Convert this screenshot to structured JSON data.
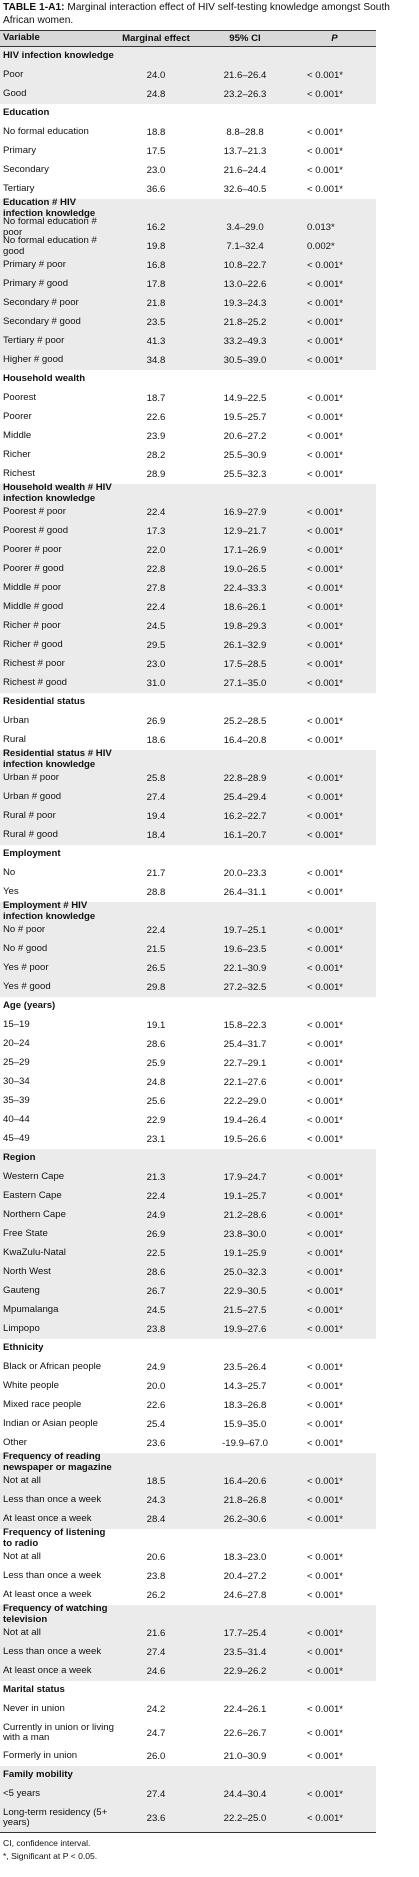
{
  "title": {
    "label": "TABLE 1-A1:",
    "text": "Marginal interaction effect of HIV self-testing knowledge amongst South African women."
  },
  "table": {
    "columns": [
      "Variable",
      "Marginal effect",
      "95% CI",
      "P"
    ],
    "sections": [
      {
        "title": "HIV infection knowledge",
        "rows": [
          [
            "Poor",
            "24.0",
            "21.6–26.4",
            "< 0.001*"
          ],
          [
            "Good",
            "24.8",
            "23.2–26.3",
            "< 0.001*"
          ]
        ]
      },
      {
        "title": "Education",
        "rows": [
          [
            "No formal education",
            "18.8",
            "8.8–28.8",
            "< 0.001*"
          ],
          [
            "Primary",
            "17.5",
            "13.7–21.3",
            "< 0.001*"
          ],
          [
            "Secondary",
            "23.0",
            "21.6–24.4",
            "< 0.001*"
          ],
          [
            "Tertiary",
            "36.6",
            "32.6–40.5",
            "< 0.001*"
          ]
        ]
      },
      {
        "title": "Education # HIV infection knowledge",
        "rows": [
          [
            "No formal education # poor",
            "16.2",
            "3.4–29.0",
            "0.013*"
          ],
          [
            "No formal education # good",
            "19.8",
            "7.1–32.4",
            "0.002*"
          ],
          [
            "Primary # poor",
            "16.8",
            "10.8–22.7",
            "< 0.001*"
          ],
          [
            "Primary # good",
            "17.8",
            "13.0–22.6",
            "< 0.001*"
          ],
          [
            "Secondary # poor",
            "21.8",
            "19.3–24.3",
            "< 0.001*"
          ],
          [
            "Secondary # good",
            "23.5",
            "21.8–25.2",
            "< 0.001*"
          ],
          [
            "Tertiary # poor",
            "41.3",
            "33.2–49.3",
            "< 0.001*"
          ],
          [
            "Higher # good",
            "34.8",
            "30.5–39.0",
            "< 0.001*"
          ]
        ]
      },
      {
        "title": "Household wealth",
        "rows": [
          [
            "Poorest",
            "18.7",
            "14.9–22.5",
            "< 0.001*"
          ],
          [
            "Poorer",
            "22.6",
            "19.5–25.7",
            "< 0.001*"
          ],
          [
            "Middle",
            "23.9",
            "20.6–27.2",
            "< 0.001*"
          ],
          [
            "Richer",
            "28.2",
            "25.5–30.9",
            "< 0.001*"
          ],
          [
            "Richest",
            "28.9",
            "25.5–32.3",
            "< 0.001*"
          ]
        ]
      },
      {
        "title": "Household wealth # HIV infection knowledge",
        "rows": [
          [
            "Poorest # poor",
            "22.4",
            "16.9–27.9",
            "< 0.001*"
          ],
          [
            "Poorest # good",
            "17.3",
            "12.9–21.7",
            "< 0.001*"
          ],
          [
            "Poorer # poor",
            "22.0",
            "17.1–26.9",
            "< 0.001*"
          ],
          [
            "Poorer # good",
            "22.8",
            "19.0–26.5",
            "< 0.001*"
          ],
          [
            "Middle # poor",
            "27.8",
            "22.4–33.3",
            "< 0.001*"
          ],
          [
            "Middle # good",
            "22.4",
            "18.6–26.1",
            "< 0.001*"
          ],
          [
            "Richer # poor",
            "24.5",
            "19.8–29.3",
            "< 0.001*"
          ],
          [
            "Richer # good",
            "29.5",
            "26.1–32.9",
            "< 0.001*"
          ],
          [
            "Richest # poor",
            "23.0",
            "17.5–28.5",
            "< 0.001*"
          ],
          [
            "Richest # good",
            "31.0",
            "27.1–35.0",
            "< 0.001*"
          ]
        ]
      },
      {
        "title": "Residential status",
        "rows": [
          [
            "Urban",
            "26.9",
            "25.2–28.5",
            "< 0.001*"
          ],
          [
            "Rural",
            "18.6",
            "16.4–20.8",
            "< 0.001*"
          ]
        ]
      },
      {
        "title": "Residential status # HIV infection knowledge",
        "rows": [
          [
            "Urban # poor",
            "25.8",
            "22.8–28.9",
            "< 0.001*"
          ],
          [
            "Urban # good",
            "27.4",
            "25.4–29.4",
            "< 0.001*"
          ],
          [
            "Rural # poor",
            "19.4",
            "16.2–22.7",
            "< 0.001*"
          ],
          [
            "Rural # good",
            "18.4",
            "16.1–20.7",
            "< 0.001*"
          ]
        ]
      },
      {
        "title": "Employment",
        "rows": [
          [
            "No",
            "21.7",
            "20.0–23.3",
            "< 0.001*"
          ],
          [
            "Yes",
            "28.8",
            "26.4–31.1",
            "< 0.001*"
          ]
        ]
      },
      {
        "title": "Employment # HIV infection knowledge",
        "rows": [
          [
            "No # poor",
            "22.4",
            "19.7–25.1",
            "< 0.001*"
          ],
          [
            "No # good",
            "21.5",
            "19.6–23.5",
            "< 0.001*"
          ],
          [
            "Yes # poor",
            "26.5",
            "22.1–30.9",
            "< 0.001*"
          ],
          [
            "Yes # good",
            "29.8",
            "27.2–32.5",
            "< 0.001*"
          ]
        ]
      },
      {
        "title": "Age (years)",
        "rows": [
          [
            "15–19",
            "19.1",
            "15.8–22.3",
            "< 0.001*"
          ],
          [
            "20–24",
            "28.6",
            "25.4–31.7",
            "< 0.001*"
          ],
          [
            "25–29",
            "25.9",
            "22.7–29.1",
            "< 0.001*"
          ],
          [
            "30–34",
            "24.8",
            "22.1–27.6",
            "< 0.001*"
          ],
          [
            "35–39",
            "25.6",
            "22.2–29.0",
            "< 0.001*"
          ],
          [
            "40–44",
            "22.9",
            "19.4–26.4",
            "< 0.001*"
          ],
          [
            "45–49",
            "23.1",
            "19.5–26.6",
            "< 0.001*"
          ]
        ]
      },
      {
        "title": "Region",
        "rows": [
          [
            "Western Cape",
            "21.3",
            "17.9–24.7",
            "< 0.001*"
          ],
          [
            "Eastern Cape",
            "22.4",
            "19.1–25.7",
            "< 0.001*"
          ],
          [
            "Northern Cape",
            "24.9",
            "21.2–28.6",
            "< 0.001*"
          ],
          [
            "Free State",
            "26.9",
            "23.8–30.0",
            "< 0.001*"
          ],
          [
            "KwaZulu-Natal",
            "22.5",
            "19.1–25.9",
            "< 0.001*"
          ],
          [
            "North West",
            "28.6",
            "25.0–32.3",
            "< 0.001*"
          ],
          [
            "Gauteng",
            "26.7",
            "22.9–30.5",
            "< 0.001*"
          ],
          [
            "Mpumalanga",
            "24.5",
            "21.5–27.5",
            "< 0.001*"
          ],
          [
            "Limpopo",
            "23.8",
            "19.9–27.6",
            "< 0.001*"
          ]
        ]
      },
      {
        "title": "Ethnicity",
        "rows": [
          [
            "Black or African people",
            "24.9",
            "23.5–26.4",
            "< 0.001*"
          ],
          [
            "White people",
            "20.0",
            "14.3–25.7",
            "< 0.001*"
          ],
          [
            "Mixed race people",
            "22.6",
            "18.3–26.8",
            "< 0.001*"
          ],
          [
            "Indian or Asian people",
            "25.4",
            "15.9–35.0",
            "< 0.001*"
          ],
          [
            "Other",
            "23.6",
            "-19.9–67.0",
            "< 0.001*"
          ]
        ]
      },
      {
        "title": "Frequency of reading newspaper or magazine",
        "rows": [
          [
            "Not at all",
            "18.5",
            "16.4–20.6",
            "< 0.001*"
          ],
          [
            "Less than once a week",
            "24.3",
            "21.8–26.8",
            "< 0.001*"
          ],
          [
            "At least once a week",
            "28.4",
            "26.2–30.6",
            "< 0.001*"
          ]
        ]
      },
      {
        "title": "Frequency of listening to radio",
        "rows": [
          [
            "Not at all",
            "20.6",
            "18.3–23.0",
            "< 0.001*"
          ],
          [
            "Less than once a week",
            "23.8",
            "20.4–27.2",
            "< 0.001*"
          ],
          [
            "At least once a week",
            "26.2",
            "24.6–27.8",
            "< 0.001*"
          ]
        ]
      },
      {
        "title": "Frequency of watching television",
        "rows": [
          [
            "Not at all",
            "21.6",
            "17.7–25.4",
            "< 0.001*"
          ],
          [
            "Less than once a week",
            "27.4",
            "23.5–31.4",
            "< 0.001*"
          ],
          [
            "At least once a week",
            "24.6",
            "22.9–26.2",
            "< 0.001*"
          ]
        ]
      },
      {
        "title": "Marital status",
        "rows": [
          [
            "Never in union",
            "24.2",
            "22.4–26.1",
            "< 0.001*"
          ],
          [
            "Currently in union or living with a man",
            "24.7",
            "22.6–26.7",
            "< 0.001*"
          ],
          [
            "Formerly in union",
            "26.0",
            "21.0–30.9",
            "< 0.001*"
          ]
        ]
      },
      {
        "title": "Family mobility",
        "rows": [
          [
            "<5 years",
            "27.4",
            "24.4–30.4",
            "< 0.001*"
          ],
          [
            "Long-term residency (5+ years)",
            "23.6",
            "22.2–25.0",
            "< 0.001*"
          ]
        ]
      }
    ]
  },
  "footnotes": [
    "CI, confidence interval.",
    "*, Significant at P < 0.05."
  ]
}
